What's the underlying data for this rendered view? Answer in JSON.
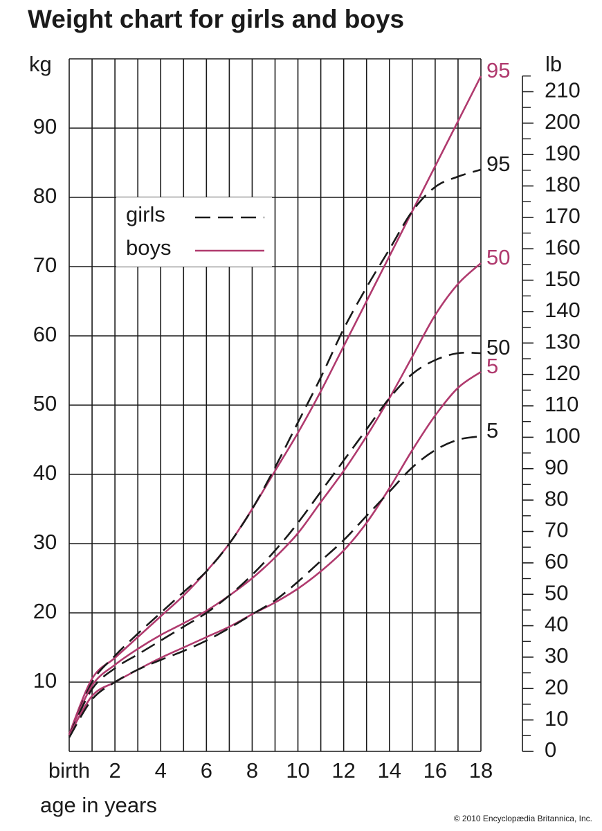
{
  "chart_data": {
    "type": "line",
    "title": "Weight chart for girls and boys",
    "x_label": "age in years",
    "y_label": "kg",
    "y2_label": "lb",
    "credit": "© 2010 Encyclopædia Britannica, Inc.",
    "x": [
      0,
      1,
      2,
      3,
      4,
      5,
      6,
      7,
      8,
      9,
      10,
      11,
      12,
      13,
      14,
      15,
      16,
      17,
      18
    ],
    "xlim": [
      0,
      18
    ],
    "xticks": [
      {
        "value": 0,
        "label": "birth"
      },
      2,
      4,
      6,
      8,
      10,
      12,
      14,
      16,
      18
    ],
    "xminorticks": [
      1,
      3,
      5,
      7,
      9,
      11,
      13,
      15,
      17
    ],
    "ylim": [
      0,
      100
    ],
    "yticks": [
      10,
      20,
      30,
      40,
      50,
      60,
      70,
      80,
      90
    ],
    "y2lim": [
      0,
      220.46
    ],
    "y2ticks": [
      0,
      10,
      20,
      30,
      40,
      50,
      60,
      70,
      80,
      90,
      100,
      110,
      120,
      130,
      140,
      150,
      160,
      170,
      180,
      190,
      200,
      210
    ],
    "y2minorticks": [
      5,
      15,
      25,
      35,
      45,
      55,
      65,
      75,
      85,
      95,
      105,
      115,
      125,
      135,
      145,
      155,
      165,
      175,
      185,
      195,
      205,
      215
    ],
    "grid": true,
    "legend": [
      {
        "label": "girls",
        "color": "#1a1a1a",
        "dashed": true
      },
      {
        "label": "boys",
        "color": "#b03a6e",
        "dashed": false
      }
    ],
    "series": [
      {
        "name": "95",
        "group": "boys",
        "color": "#b03a6e",
        "dashed": false,
        "values": [
          2.5,
          10.5,
          13.5,
          16.5,
          19.5,
          22.5,
          26,
          30,
          35,
          40.5,
          46,
          52,
          58.5,
          65,
          71.5,
          78,
          84.5,
          91,
          97.5
        ]
      },
      {
        "name": "95",
        "group": "girls",
        "color": "#1a1a1a",
        "dashed": true,
        "values": [
          2.2,
          10,
          13.8,
          17,
          20,
          23,
          26,
          30,
          35,
          41,
          47.5,
          54,
          61,
          67,
          72.5,
          78,
          81.5,
          83,
          84
        ]
      },
      {
        "name": "50",
        "group": "boys",
        "color": "#b03a6e",
        "dashed": false,
        "values": [
          2.5,
          9.5,
          12.5,
          14.8,
          16.8,
          18.5,
          20.3,
          22.5,
          25,
          28,
          31.5,
          36,
          40.5,
          45.5,
          51,
          57,
          63,
          67.5,
          70.5
        ]
      },
      {
        "name": "50",
        "group": "girls",
        "color": "#1a1a1a",
        "dashed": true,
        "values": [
          2.3,
          9,
          12,
          14,
          16,
          18,
          20,
          22.5,
          25.5,
          29,
          33,
          37.5,
          42,
          46.5,
          51,
          54.5,
          56.5,
          57.5,
          57.5
        ]
      },
      {
        "name": "5",
        "group": "boys",
        "color": "#b03a6e",
        "dashed": false,
        "values": [
          2.3,
          8,
          10,
          11.8,
          13.5,
          15,
          16.5,
          18,
          19.8,
          21.5,
          23.5,
          26,
          29,
          33,
          38,
          43.5,
          48.5,
          52.5,
          54.8
        ]
      },
      {
        "name": "5",
        "group": "girls",
        "color": "#1a1a1a",
        "dashed": true,
        "values": [
          2,
          7.5,
          10,
          11.8,
          13.2,
          14.5,
          16,
          17.8,
          19.8,
          21.8,
          24.5,
          27.5,
          30.5,
          34,
          37.5,
          41,
          43.5,
          45,
          45.5
        ]
      }
    ]
  }
}
